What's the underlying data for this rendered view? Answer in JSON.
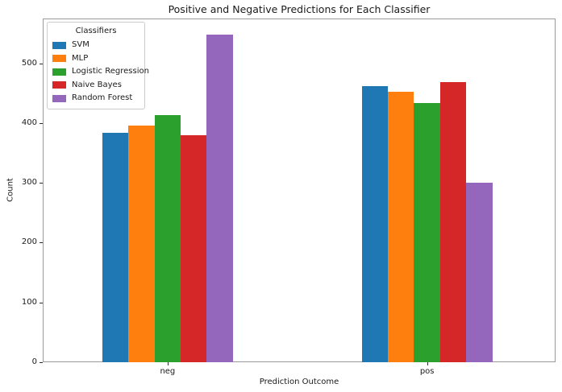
{
  "figure": {
    "background": "#ffffff"
  },
  "chart_data": {
    "type": "bar",
    "title": "Positive and Negative Predictions for Each Classifier",
    "xlabel": "Prediction Outcome",
    "ylabel": "Count",
    "categories": [
      "neg",
      "pos"
    ],
    "series": [
      {
        "name": "SVM",
        "color": "#1f77b4",
        "values": [
          384,
          462
        ]
      },
      {
        "name": "MLP",
        "color": "#ff7f0e",
        "values": [
          396,
          452
        ]
      },
      {
        "name": "Logistic Regression",
        "color": "#2ca02c",
        "values": [
          414,
          434
        ]
      },
      {
        "name": "Naive Bayes",
        "color": "#d62728",
        "values": [
          380,
          468
        ]
      },
      {
        "name": "Random Forest",
        "color": "#9467bd",
        "values": [
          548,
          300
        ]
      }
    ],
    "legend_title": "Classifiers",
    "legend_position": "upper left",
    "ylim": [
      0,
      575
    ],
    "yticks": [
      0,
      100,
      200,
      300,
      400,
      500
    ],
    "grid": false
  }
}
